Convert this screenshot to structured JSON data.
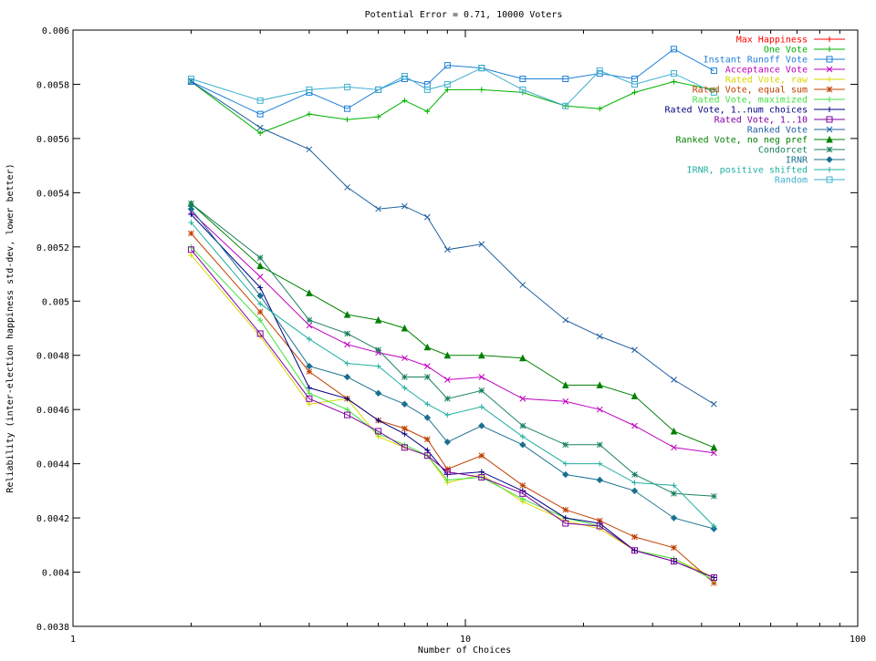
{
  "chart_data": {
    "type": "line",
    "title": "Potential Error = 0.71, 10000 Voters",
    "xlabel": "Number of Choices",
    "ylabel": "Reliability (inter-election happiness std-dev, lower better)",
    "x_scale": "log",
    "xlim": [
      1,
      100
    ],
    "ylim": [
      0.0038,
      0.006
    ],
    "x_ticks": [
      1,
      10,
      100
    ],
    "x_tick_labels": [
      "1",
      "10",
      "100"
    ],
    "y_ticks": [
      0.0038,
      0.004,
      0.0042,
      0.0044,
      0.0046,
      0.0048,
      0.005,
      0.0052,
      0.0054,
      0.0056,
      0.0058,
      0.006
    ],
    "y_tick_labels": [
      "0.0038",
      "0.004",
      "0.0042",
      "0.0044",
      "0.0046",
      "0.0048",
      "0.005",
      "0.0052",
      "0.0054",
      "0.0056",
      "0.0058",
      "0.006"
    ],
    "grid": false,
    "legend_position": "top-right",
    "x": [
      2,
      3,
      4,
      5,
      6,
      7,
      8,
      9,
      11,
      14,
      18,
      22,
      27,
      34,
      43
    ],
    "series": [
      {
        "name": "Max Happiness",
        "color": "#ff0000",
        "marker": "plus",
        "values": [
          null,
          null,
          null,
          null,
          null,
          null,
          null,
          null,
          null,
          null,
          null,
          null,
          null,
          null,
          null
        ]
      },
      {
        "name": "One Vote",
        "color": "#00b000",
        "marker": "plus",
        "values": [
          0.00581,
          0.00562,
          0.00569,
          0.00567,
          0.00568,
          0.00574,
          0.0057,
          0.00578,
          0.00578,
          0.00577,
          0.00572,
          0.00571,
          0.00577,
          0.00581,
          0.00578
        ]
      },
      {
        "name": "Instant Runoff Vote",
        "color": "#1e7fd8",
        "marker": "square",
        "values": [
          0.00581,
          0.00569,
          0.00577,
          0.00571,
          0.00578,
          0.00582,
          0.0058,
          0.00587,
          0.00586,
          0.00582,
          0.00582,
          0.00584,
          0.00582,
          0.00593,
          0.00585
        ]
      },
      {
        "name": "Acceptance Vote",
        "color": "#c000c0",
        "marker": "x",
        "values": [
          0.00533,
          0.00509,
          0.00491,
          0.00484,
          0.00481,
          0.00479,
          0.00476,
          0.00471,
          0.00472,
          0.00464,
          0.00463,
          0.0046,
          0.00454,
          0.00446,
          0.00444
        ]
      },
      {
        "name": "Rated Vote, raw",
        "color": "#d8d800",
        "marker": "plus",
        "values": [
          0.00517,
          0.00487,
          0.00462,
          0.00464,
          0.0045,
          0.00446,
          0.00443,
          0.00433,
          0.00436,
          0.00426,
          0.00419,
          0.00416,
          0.00408,
          0.00405,
          0.00398
        ]
      },
      {
        "name": "Rated Vote, equal sum",
        "color": "#c04000",
        "marker": "star",
        "values": [
          0.00525,
          0.00496,
          0.00474,
          0.00464,
          0.00456,
          0.00453,
          0.00449,
          0.00438,
          0.00443,
          0.00432,
          0.00423,
          0.00419,
          0.00413,
          0.00409,
          0.00396
        ]
      },
      {
        "name": "Rated Vote, maximized",
        "color": "#40e040",
        "marker": "plus",
        "values": [
          0.0052,
          0.00493,
          0.00466,
          0.0046,
          0.00451,
          0.00447,
          0.00443,
          0.00434,
          0.00435,
          0.00427,
          0.0042,
          0.00417,
          0.00408,
          0.00405,
          0.00397
        ]
      },
      {
        "name": "Rated Vote, 1..num choices",
        "color": "#000080",
        "marker": "plus",
        "values": [
          0.00532,
          0.00505,
          0.00468,
          0.00464,
          0.00456,
          0.00451,
          0.00445,
          0.00436,
          0.00437,
          0.0043,
          0.0042,
          0.00418,
          0.00408,
          0.00404,
          0.00398
        ]
      },
      {
        "name": "Rated Vote, 1..10",
        "color": "#8000a0",
        "marker": "square",
        "values": [
          0.00519,
          0.00488,
          0.00464,
          0.00458,
          0.00452,
          0.00446,
          0.00443,
          0.00437,
          0.00435,
          0.00429,
          0.00418,
          0.00417,
          0.00408,
          0.00404,
          0.00398
        ]
      },
      {
        "name": "Ranked Vote",
        "color": "#2060a0",
        "marker": "x",
        "values": [
          0.00581,
          0.00564,
          0.00556,
          0.00542,
          0.00534,
          0.00535,
          0.00531,
          0.00519,
          0.00521,
          0.00506,
          0.00493,
          0.00487,
          0.00482,
          0.00471,
          0.00462
        ]
      },
      {
        "name": "Ranked Vote, no neg pref",
        "color": "#008000",
        "marker": "triangle",
        "values": [
          0.00536,
          0.00513,
          0.00503,
          0.00495,
          0.00493,
          0.0049,
          0.00483,
          0.0048,
          0.0048,
          0.00479,
          0.00469,
          0.00469,
          0.00465,
          0.00452,
          0.00446
        ]
      },
      {
        "name": "Condorcet",
        "color": "#1a8060",
        "marker": "star",
        "values": [
          0.00536,
          0.00516,
          0.00493,
          0.00488,
          0.00482,
          0.00472,
          0.00472,
          0.00464,
          0.00467,
          0.00454,
          0.00447,
          0.00447,
          0.00436,
          0.00429,
          0.00428
        ]
      },
      {
        "name": "IRNR",
        "color": "#1a7090",
        "marker": "diamond",
        "values": [
          0.00534,
          0.00502,
          0.00476,
          0.00472,
          0.00466,
          0.00462,
          0.00457,
          0.00448,
          0.00454,
          0.00447,
          0.00436,
          0.00434,
          0.0043,
          0.0042,
          0.00416
        ]
      },
      {
        "name": "IRNR, positive shifted",
        "color": "#20b0a0",
        "marker": "plus",
        "values": [
          0.00529,
          0.00499,
          0.00486,
          0.00477,
          0.00476,
          0.00468,
          0.00462,
          0.00458,
          0.00461,
          0.0045,
          0.0044,
          0.0044,
          0.00433,
          0.00432,
          0.00417
        ]
      },
      {
        "name": "Random",
        "color": "#40b0d0",
        "marker": "square",
        "values": [
          0.00582,
          0.00574,
          0.00578,
          0.00579,
          0.00578,
          0.00583,
          0.00578,
          0.0058,
          0.00586,
          0.00578,
          0.00572,
          0.00585,
          0.0058,
          0.00584,
          0.00577
        ]
      }
    ]
  }
}
